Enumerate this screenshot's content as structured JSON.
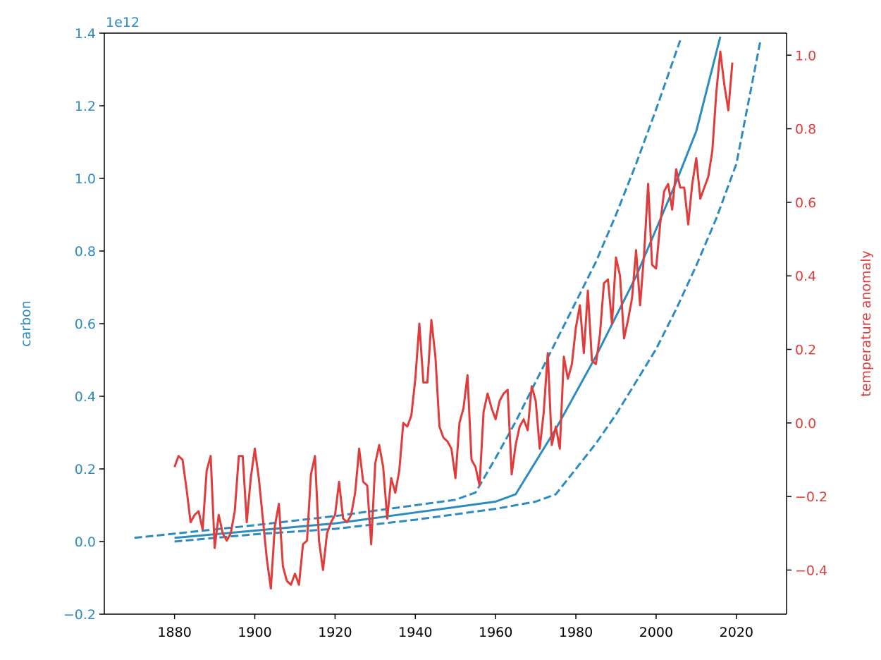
{
  "chart_data": {
    "type": "line",
    "colors": {
      "left": "#2e8bc0",
      "right": "#e03c3c",
      "axis": "#000000"
    },
    "left_axis": {
      "label": "carbon",
      "offset_text": "1e12",
      "ylim": [
        -0.2,
        1.4
      ],
      "ticks": [
        -0.2,
        0.0,
        0.2,
        0.4,
        0.6,
        0.8,
        1.0,
        1.2,
        1.4
      ],
      "tick_labels": [
        "−0.2",
        "0.0",
        "0.2",
        "0.4",
        "0.6",
        "0.8",
        "1.0",
        "1.2",
        "1.4"
      ]
    },
    "right_axis": {
      "label": "temperature anomaly",
      "ylim": [
        -0.52,
        1.06
      ],
      "ticks": [
        -0.4,
        -0.2,
        0.0,
        0.2,
        0.4,
        0.6,
        0.8,
        1.0
      ],
      "tick_labels": [
        "−0.4",
        "−0.2",
        "0.0",
        "0.2",
        "0.4",
        "0.6",
        "0.8",
        "1.0"
      ]
    },
    "x_axis": {
      "xlim": [
        1862.5,
        2032.5
      ],
      "ticks": [
        1880,
        1900,
        1920,
        1940,
        1960,
        1980,
        2000,
        2020
      ],
      "tick_labels": [
        "1880",
        "1900",
        "1920",
        "1940",
        "1960",
        "1980",
        "2000",
        "2020"
      ]
    },
    "series": [
      {
        "axis": "left",
        "style": "solid",
        "x": [
          1880,
          1900,
          1920,
          1940,
          1960,
          1965,
          1970,
          1975,
          1980,
          1985,
          1990,
          1995,
          2000,
          2005,
          2010,
          2016
        ],
        "y": [
          0.01,
          0.03,
          0.05,
          0.08,
          0.11,
          0.13,
          0.22,
          0.31,
          0.41,
          0.51,
          0.62,
          0.73,
          0.86,
          0.99,
          1.13,
          1.39
        ]
      },
      {
        "axis": "left",
        "style": "dashed",
        "x": [
          1870,
          1900,
          1920,
          1940,
          1950,
          1955,
          1960,
          1965,
          1970,
          1975,
          1980,
          1985,
          1990,
          1995,
          2000,
          2006
        ],
        "y": [
          0.01,
          0.045,
          0.07,
          0.1,
          0.115,
          0.135,
          0.23,
          0.33,
          0.44,
          0.55,
          0.66,
          0.77,
          0.9,
          1.04,
          1.19,
          1.38
        ]
      },
      {
        "axis": "left",
        "style": "dashed",
        "x": [
          1880,
          1900,
          1920,
          1940,
          1960,
          1970,
          1975,
          1980,
          1985,
          1990,
          1995,
          2000,
          2005,
          2010,
          2015,
          2020,
          2026
        ],
        "y": [
          0.0,
          0.02,
          0.035,
          0.06,
          0.09,
          0.11,
          0.13,
          0.2,
          0.27,
          0.35,
          0.44,
          0.53,
          0.64,
          0.76,
          0.89,
          1.04,
          1.38
        ]
      },
      {
        "axis": "right",
        "style": "solid",
        "x": [
          1880,
          1881,
          1882,
          1883,
          1884,
          1885,
          1886,
          1887,
          1888,
          1889,
          1890,
          1891,
          1892,
          1893,
          1894,
          1895,
          1896,
          1897,
          1898,
          1899,
          1900,
          1901,
          1902,
          1903,
          1904,
          1905,
          1906,
          1907,
          1908,
          1909,
          1910,
          1911,
          1912,
          1913,
          1914,
          1915,
          1916,
          1917,
          1918,
          1919,
          1920,
          1921,
          1922,
          1923,
          1924,
          1925,
          1926,
          1927,
          1928,
          1929,
          1930,
          1931,
          1932,
          1933,
          1934,
          1935,
          1936,
          1937,
          1938,
          1939,
          1940,
          1941,
          1942,
          1943,
          1944,
          1945,
          1946,
          1947,
          1948,
          1949,
          1950,
          1951,
          1952,
          1953,
          1954,
          1955,
          1956,
          1957,
          1958,
          1959,
          1960,
          1961,
          1962,
          1963,
          1964,
          1965,
          1966,
          1967,
          1968,
          1969,
          1970,
          1971,
          1972,
          1973,
          1974,
          1975,
          1976,
          1977,
          1978,
          1979,
          1980,
          1981,
          1982,
          1983,
          1984,
          1985,
          1986,
          1987,
          1988,
          1989,
          1990,
          1991,
          1992,
          1993,
          1994,
          1995,
          1996,
          1997,
          1998,
          1999,
          2000,
          2001,
          2002,
          2003,
          2004,
          2005,
          2006,
          2007,
          2008,
          2009,
          2010,
          2011,
          2012,
          2013,
          2014,
          2015,
          2016,
          2017,
          2018,
          2019
        ],
        "y": [
          -0.12,
          -0.09,
          -0.1,
          -0.18,
          -0.27,
          -0.25,
          -0.24,
          -0.29,
          -0.13,
          -0.09,
          -0.34,
          -0.25,
          -0.3,
          -0.32,
          -0.3,
          -0.24,
          -0.09,
          -0.09,
          -0.27,
          -0.15,
          -0.07,
          -0.15,
          -0.26,
          -0.37,
          -0.45,
          -0.28,
          -0.22,
          -0.39,
          -0.43,
          -0.44,
          -0.41,
          -0.44,
          -0.33,
          -0.32,
          -0.14,
          -0.09,
          -0.32,
          -0.4,
          -0.3,
          -0.27,
          -0.25,
          -0.16,
          -0.26,
          -0.27,
          -0.25,
          -0.19,
          -0.07,
          -0.16,
          -0.17,
          -0.33,
          -0.11,
          -0.06,
          -0.12,
          -0.26,
          -0.15,
          -0.19,
          -0.13,
          0.0,
          -0.01,
          0.02,
          0.12,
          0.27,
          0.11,
          0.11,
          0.28,
          0.18,
          -0.01,
          -0.04,
          -0.05,
          -0.07,
          -0.15,
          0.0,
          0.04,
          0.13,
          -0.1,
          -0.12,
          -0.17,
          0.03,
          0.08,
          0.04,
          0.01,
          0.06,
          0.08,
          0.09,
          -0.14,
          -0.06,
          -0.01,
          0.01,
          -0.02,
          0.1,
          0.06,
          -0.07,
          0.03,
          0.19,
          -0.06,
          -0.01,
          -0.07,
          0.18,
          0.12,
          0.16,
          0.26,
          0.32,
          0.19,
          0.36,
          0.17,
          0.16,
          0.24,
          0.38,
          0.39,
          0.27,
          0.45,
          0.4,
          0.23,
          0.28,
          0.34,
          0.47,
          0.32,
          0.46,
          0.65,
          0.43,
          0.42,
          0.54,
          0.63,
          0.65,
          0.58,
          0.69,
          0.64,
          0.64,
          0.54,
          0.65,
          0.72,
          0.61,
          0.64,
          0.67,
          0.74,
          0.9,
          1.01,
          0.92,
          0.85,
          0.98
        ]
      }
    ]
  }
}
